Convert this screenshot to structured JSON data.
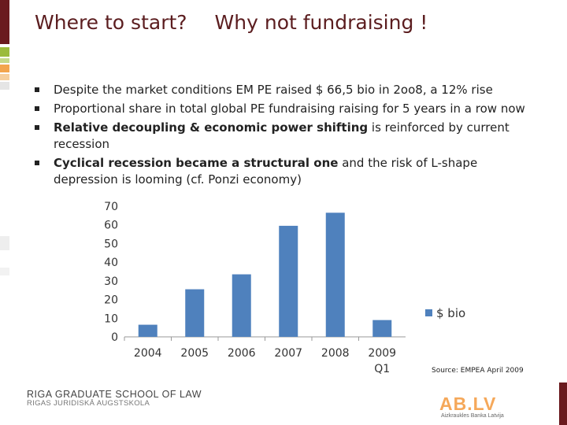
{
  "slide": {
    "title_part1": "Where to start?",
    "title_part2": "Why not fundraising !"
  },
  "bullets": [
    {
      "bold": "",
      "text": "Despite the market conditions EM PE raised $ 66,5 bio in 2oo8, a 12% rise"
    },
    {
      "bold": "",
      "text": "Proportional share in total global PE fundraising raising for 5 years in a row now"
    },
    {
      "bold": "Relative decoupling & economic power shifting",
      "text": " is reinforced by current recession"
    },
    {
      "bold": "Cyclical recession became a structural one",
      "text": " and the risk of L-shape depression is looming (cf. Ponzi economy)"
    }
  ],
  "chart_data": {
    "type": "bar",
    "categories": [
      "2004",
      "2005",
      "2006",
      "2007",
      "2008",
      "2009 Q1"
    ],
    "series": [
      {
        "name": "$ bio",
        "values": [
          6.5,
          25.5,
          33.5,
          59.5,
          66.5,
          9
        ]
      }
    ],
    "ylim": [
      0,
      70
    ],
    "yticks": [
      "0",
      "10",
      "20",
      "30",
      "40",
      "50",
      "60",
      "70"
    ],
    "grid": false,
    "legend": "right",
    "color": "#4f81bd"
  },
  "source_note": "Source: EMPEA April 2009",
  "footer": {
    "school_line1": "RIGA GRADUATE SCHOOL OF LAW",
    "school_line2": "RIGAS JURIDISKĀ AUGSTSKOLA",
    "bank_mark": "AB.LV",
    "bank_sub": "Aizkraukles Banka Latvija"
  },
  "colors": {
    "title": "#5b1d1f",
    "rail_dark": "#6a1a1e",
    "rail_green": "#9bbb3c",
    "rail_orange": "#f3a54e",
    "bar": "#4f81bd"
  }
}
